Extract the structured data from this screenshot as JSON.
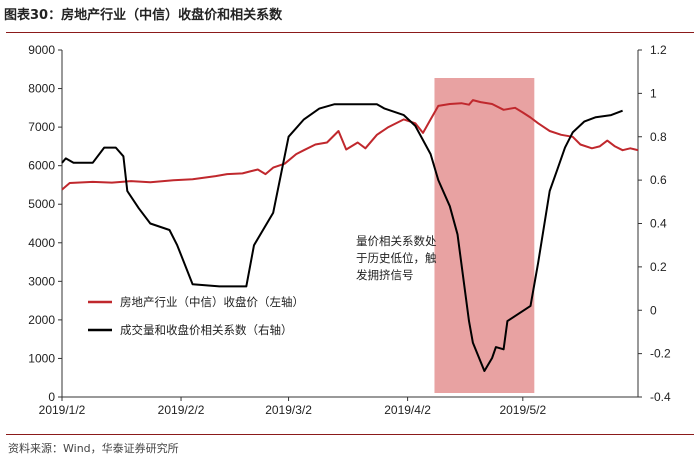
{
  "title": "图表30：房地产行业（中信）收盘价和相关系数",
  "source": "资料来源：Wind，华泰证券研究所",
  "chart_data": {
    "type": "line",
    "x_ticks": [
      "2019/1/2",
      "2019/2/2",
      "2019/3/2",
      "2019/4/2",
      "2019/5/2"
    ],
    "x_range": [
      "2019-01-02",
      "2019-06-01"
    ],
    "y_left": {
      "range": [
        0,
        9000
      ],
      "ticks": [
        "0",
        "1000",
        "2000",
        "3000",
        "4000",
        "5000",
        "6000",
        "7000",
        "8000",
        "9000"
      ]
    },
    "y_right": {
      "range": [
        -0.4,
        1.2
      ],
      "ticks": [
        "-0.4",
        "-0.2",
        "0",
        "0.2",
        "0.4",
        "0.6",
        "0.8",
        "1",
        "1.2"
      ]
    },
    "highlight": {
      "from": "2019-04-09",
      "to": "2019-05-05",
      "color": "#e8a2a2"
    },
    "annotation": [
      "量价相关系数处",
      "于历史低位，触",
      "发拥挤信号"
    ],
    "series": [
      {
        "name": "房地产行业（中信）收盘价（左轴）",
        "axis": "left",
        "color": "#c0282d",
        "points": [
          [
            "2019-01-02",
            5380
          ],
          [
            "2019-01-04",
            5550
          ],
          [
            "2019-01-10",
            5580
          ],
          [
            "2019-01-15",
            5560
          ],
          [
            "2019-01-20",
            5600
          ],
          [
            "2019-01-25",
            5570
          ],
          [
            "2019-01-31",
            5620
          ],
          [
            "2019-02-05",
            5650
          ],
          [
            "2019-02-11",
            5730
          ],
          [
            "2019-02-14",
            5780
          ],
          [
            "2019-02-18",
            5800
          ],
          [
            "2019-02-20",
            5850
          ],
          [
            "2019-02-22",
            5900
          ],
          [
            "2019-02-24",
            5780
          ],
          [
            "2019-02-26",
            5950
          ],
          [
            "2019-03-01",
            6050
          ],
          [
            "2019-03-04",
            6300
          ],
          [
            "2019-03-06",
            6400
          ],
          [
            "2019-03-09",
            6550
          ],
          [
            "2019-03-12",
            6600
          ],
          [
            "2019-03-15",
            6900
          ],
          [
            "2019-03-17",
            6420
          ],
          [
            "2019-03-20",
            6600
          ],
          [
            "2019-03-22",
            6450
          ],
          [
            "2019-03-25",
            6800
          ],
          [
            "2019-03-28",
            7000
          ],
          [
            "2019-04-01",
            7200
          ],
          [
            "2019-04-04",
            7100
          ],
          [
            "2019-04-06",
            6850
          ],
          [
            "2019-04-08",
            7200
          ],
          [
            "2019-04-10",
            7550
          ],
          [
            "2019-04-13",
            7600
          ],
          [
            "2019-04-16",
            7620
          ],
          [
            "2019-04-18",
            7580
          ],
          [
            "2019-04-19",
            7700
          ],
          [
            "2019-04-21",
            7650
          ],
          [
            "2019-04-24",
            7600
          ],
          [
            "2019-04-27",
            7450
          ],
          [
            "2019-04-30",
            7500
          ],
          [
            "2019-05-02",
            7380
          ],
          [
            "2019-05-04",
            7250
          ],
          [
            "2019-05-06",
            7100
          ],
          [
            "2019-05-09",
            6900
          ],
          [
            "2019-05-12",
            6800
          ],
          [
            "2019-05-15",
            6750
          ],
          [
            "2019-05-17",
            6550
          ],
          [
            "2019-05-20",
            6450
          ],
          [
            "2019-05-22",
            6500
          ],
          [
            "2019-05-24",
            6650
          ],
          [
            "2019-05-26",
            6500
          ],
          [
            "2019-05-28",
            6400
          ],
          [
            "2019-05-30",
            6450
          ],
          [
            "2019-06-01",
            6400
          ]
        ]
      },
      {
        "name": "成交量和收盘价相关系数（右轴）",
        "axis": "right",
        "color": "#000000",
        "points": [
          [
            "2019-01-02",
            0.68
          ],
          [
            "2019-01-03",
            0.7
          ],
          [
            "2019-01-05",
            0.68
          ],
          [
            "2019-01-10",
            0.68
          ],
          [
            "2019-01-13",
            0.75
          ],
          [
            "2019-01-16",
            0.75
          ],
          [
            "2019-01-18",
            0.71
          ],
          [
            "2019-01-19",
            0.55
          ],
          [
            "2019-01-22",
            0.47
          ],
          [
            "2019-01-25",
            0.4
          ],
          [
            "2019-01-30",
            0.37
          ],
          [
            "2019-02-01",
            0.3
          ],
          [
            "2019-02-05",
            0.12
          ],
          [
            "2019-02-12",
            0.11
          ],
          [
            "2019-02-19",
            0.11
          ],
          [
            "2019-02-21",
            0.3
          ],
          [
            "2019-02-26",
            0.45
          ],
          [
            "2019-03-02",
            0.8
          ],
          [
            "2019-03-06",
            0.88
          ],
          [
            "2019-03-10",
            0.93
          ],
          [
            "2019-03-14",
            0.95
          ],
          [
            "2019-03-21",
            0.95
          ],
          [
            "2019-03-25",
            0.95
          ],
          [
            "2019-03-27",
            0.93
          ],
          [
            "2019-04-01",
            0.9
          ],
          [
            "2019-04-04",
            0.85
          ],
          [
            "2019-04-08",
            0.72
          ],
          [
            "2019-04-10",
            0.6
          ],
          [
            "2019-04-13",
            0.48
          ],
          [
            "2019-04-15",
            0.35
          ],
          [
            "2019-04-18",
            -0.05
          ],
          [
            "2019-04-19",
            -0.15
          ],
          [
            "2019-04-22",
            -0.28
          ],
          [
            "2019-04-24",
            -0.22
          ],
          [
            "2019-04-25",
            -0.17
          ],
          [
            "2019-04-27",
            -0.18
          ],
          [
            "2019-04-28",
            -0.05
          ],
          [
            "2019-05-04",
            0.02
          ],
          [
            "2019-05-06",
            0.22
          ],
          [
            "2019-05-09",
            0.55
          ],
          [
            "2019-05-11",
            0.65
          ],
          [
            "2019-05-13",
            0.75
          ],
          [
            "2019-05-15",
            0.82
          ],
          [
            "2019-05-18",
            0.87
          ],
          [
            "2019-05-21",
            0.89
          ],
          [
            "2019-05-25",
            0.9
          ],
          [
            "2019-05-28",
            0.92
          ]
        ]
      }
    ]
  }
}
